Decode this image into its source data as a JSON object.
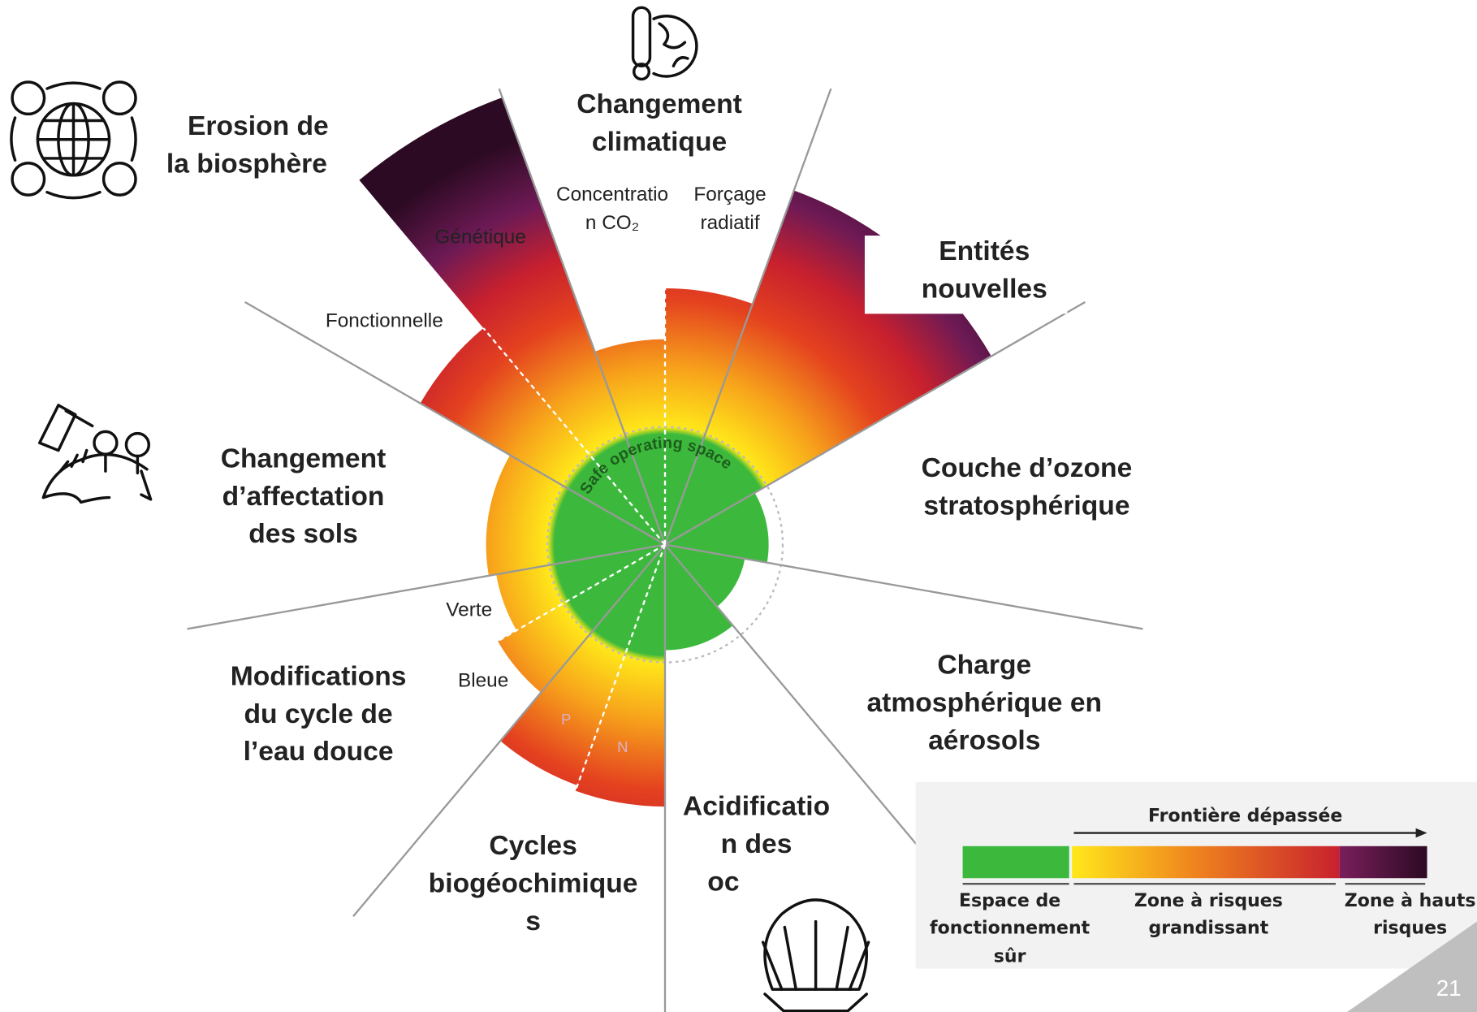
{
  "diagram": {
    "center_label": "Safe operating space",
    "boundaries": [
      {
        "lines": [
          "Changement",
          "climatique"
        ],
        "sub": [
          "Concentratio",
          "n CO₂",
          "Forçage",
          "radiatif"
        ]
      },
      {
        "lines": [
          "Entités",
          "nouvelles"
        ]
      },
      {
        "lines": [
          "Couche d’ozone",
          "stratosphérique"
        ]
      },
      {
        "lines": [
          "Charge",
          "atmosphérique en",
          "aérosols"
        ]
      },
      {
        "lines": [
          "Acidificatio",
          "n des",
          "oc"
        ]
      },
      {
        "lines": [
          "Cycles",
          "biogéochimique",
          "s"
        ],
        "sub": [
          "P",
          "N"
        ]
      },
      {
        "lines": [
          "Modifications",
          "du cycle de",
          "l’eau douce"
        ],
        "sub": [
          "Verte",
          "Bleue"
        ]
      },
      {
        "lines": [
          "Changement",
          "d’affectation",
          "des sols"
        ]
      },
      {
        "lines": [
          "Erosion de",
          "la biosphère"
        ],
        "sub": [
          "Génétique",
          "Fonctionnelle"
        ]
      }
    ],
    "legend": {
      "title": "Frontière dépassée",
      "safe": [
        "Espace de",
        "fonctionnement",
        "sûr"
      ],
      "rising": [
        "Zone à risques",
        "grandissant"
      ],
      "high": [
        "Zone à hauts",
        "risques"
      ]
    },
    "page_number": "21"
  }
}
